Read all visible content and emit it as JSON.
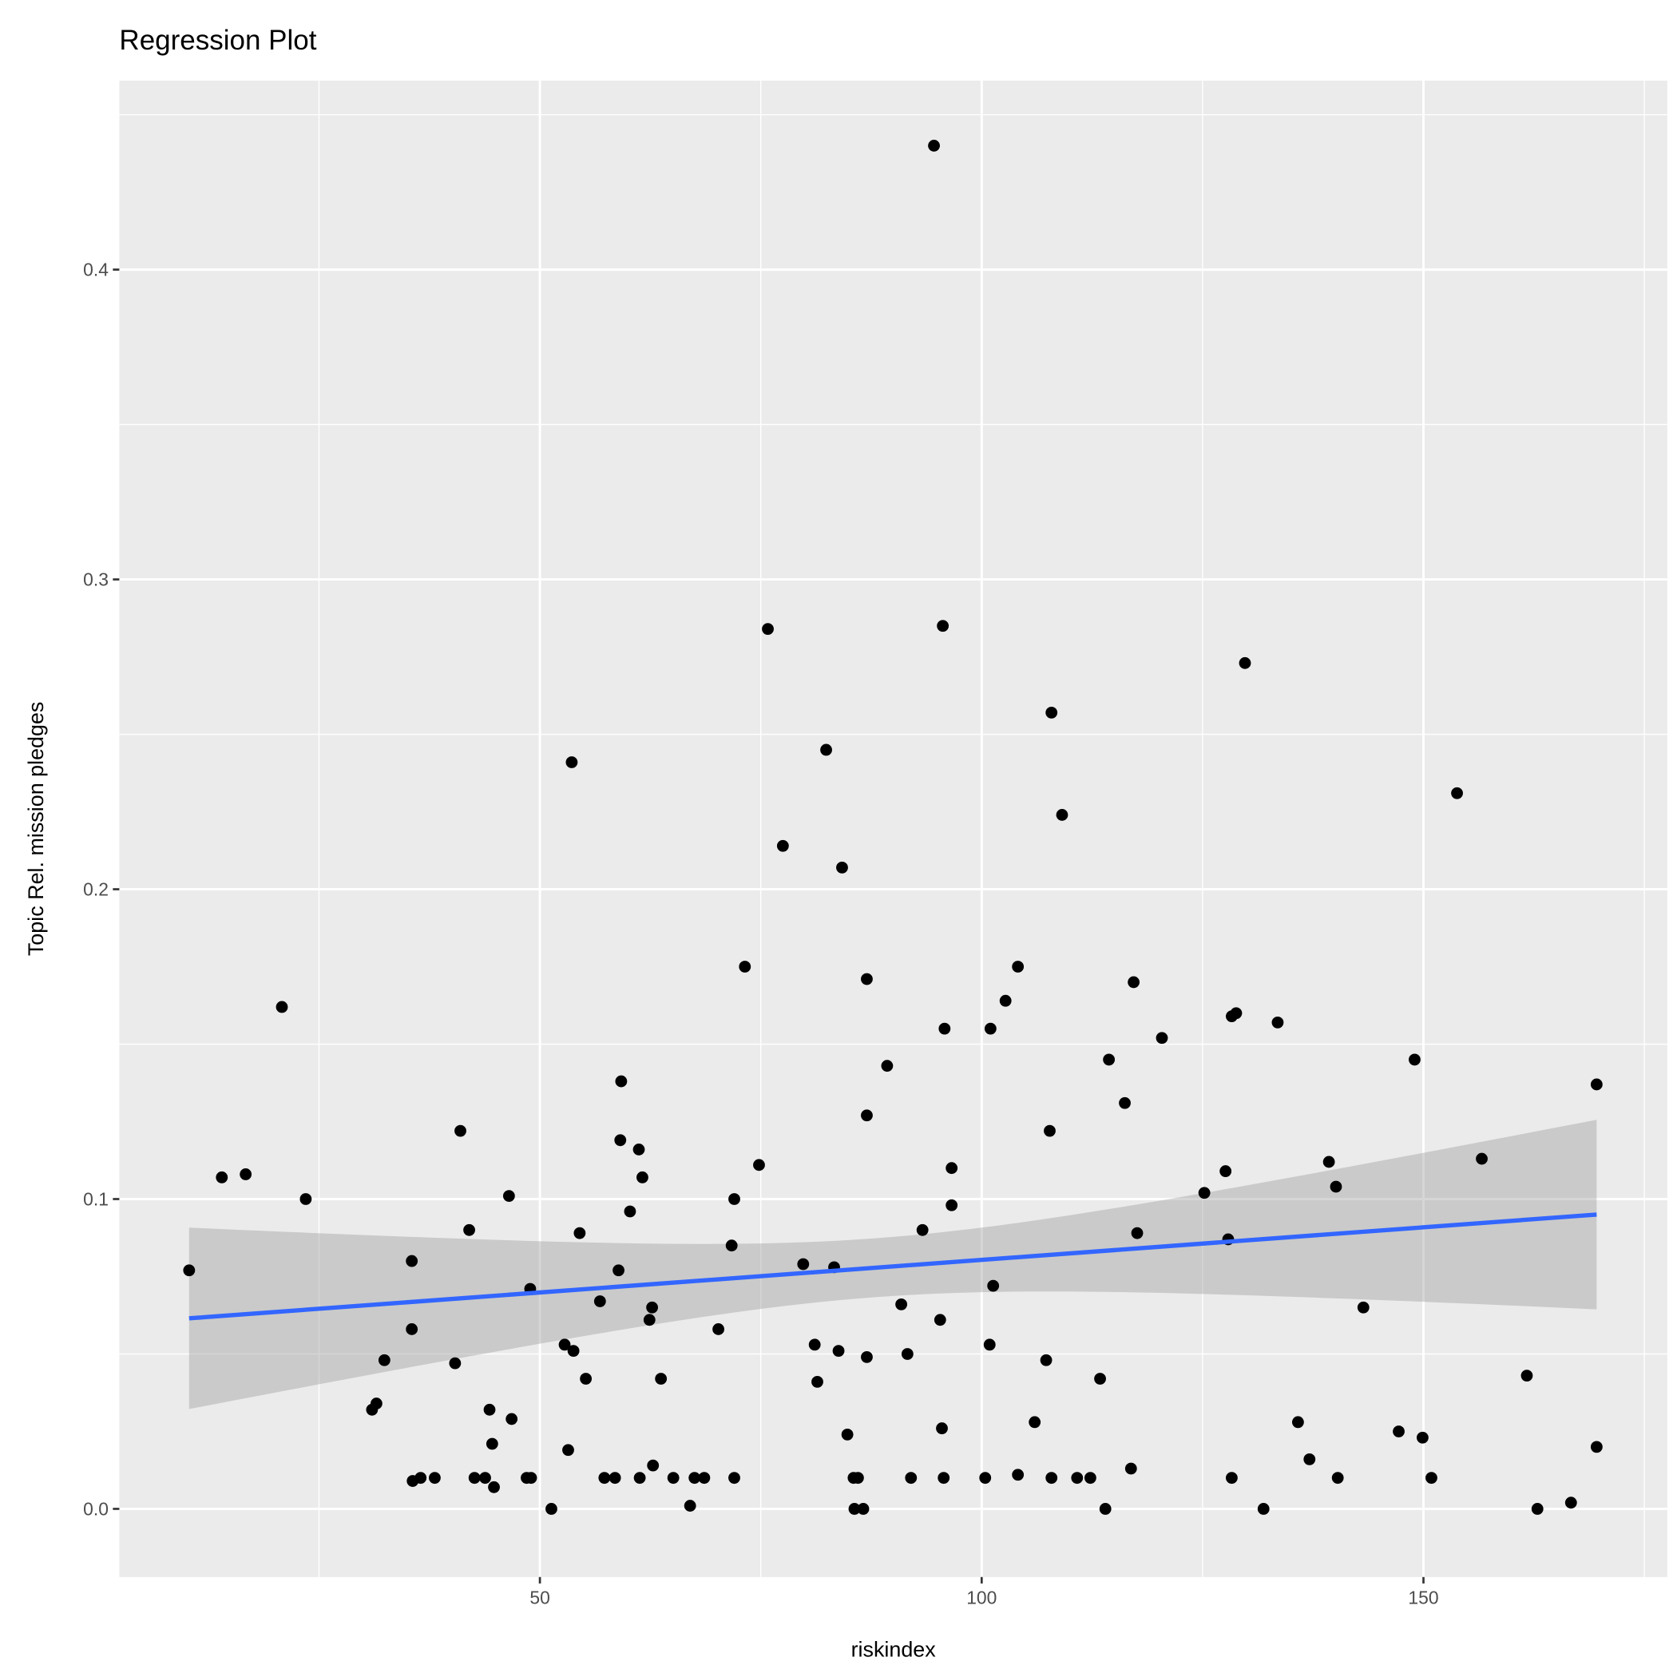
{
  "chart_data": {
    "type": "scatter",
    "title": "Regression Plot",
    "xlabel": "riskindex",
    "ylabel": "Topic Rel. mission pledges",
    "xlim": [
      2.4,
      177.6
    ],
    "ylim": [
      -0.022,
      0.461
    ],
    "xticks": [
      50,
      100,
      150
    ],
    "xtick_labels": [
      "50",
      "100",
      "150"
    ],
    "yticks": [
      0.0,
      0.1,
      0.2,
      0.3,
      0.4
    ],
    "ytick_labels": [
      "0.0",
      "0.1",
      "0.2",
      "0.3",
      "0.4"
    ],
    "grid": true,
    "colors": {
      "panel": "#ebebeb",
      "grid": "#ffffff",
      "point": "#000000",
      "line": "#3366ff",
      "band": "#999999"
    },
    "points": [
      [
        10.3,
        0.077
      ],
      [
        14.0,
        0.107
      ],
      [
        16.7,
        0.108
      ],
      [
        20.8,
        0.162
      ],
      [
        23.5,
        0.1
      ],
      [
        31.0,
        0.032
      ],
      [
        31.5,
        0.034
      ],
      [
        32.4,
        0.048
      ],
      [
        35.5,
        0.08
      ],
      [
        35.5,
        0.058
      ],
      [
        35.6,
        0.009
      ],
      [
        36.5,
        0.01
      ],
      [
        38.1,
        0.01
      ],
      [
        40.4,
        0.047
      ],
      [
        41.0,
        0.122
      ],
      [
        42.0,
        0.09
      ],
      [
        42.6,
        0.01
      ],
      [
        43.8,
        0.01
      ],
      [
        44.3,
        0.032
      ],
      [
        44.6,
        0.021
      ],
      [
        44.8,
        0.007
      ],
      [
        46.5,
        0.101
      ],
      [
        46.8,
        0.029
      ],
      [
        48.5,
        0.01
      ],
      [
        49.0,
        0.01
      ],
      [
        48.9,
        0.071
      ],
      [
        51.3,
        0.0
      ],
      [
        52.8,
        0.053
      ],
      [
        53.2,
        0.019
      ],
      [
        53.6,
        0.241
      ],
      [
        53.8,
        0.051
      ],
      [
        54.5,
        0.089
      ],
      [
        55.2,
        0.042
      ],
      [
        56.8,
        0.067
      ],
      [
        57.3,
        0.01
      ],
      [
        58.5,
        0.01
      ],
      [
        58.9,
        0.077
      ],
      [
        59.1,
        0.119
      ],
      [
        59.2,
        0.138
      ],
      [
        60.2,
        0.096
      ],
      [
        61.2,
        0.116
      ],
      [
        61.3,
        0.01
      ],
      [
        61.6,
        0.107
      ],
      [
        62.4,
        0.061
      ],
      [
        62.7,
        0.065
      ],
      [
        62.8,
        0.014
      ],
      [
        63.7,
        0.042
      ],
      [
        65.1,
        0.01
      ],
      [
        67.0,
        0.001
      ],
      [
        67.5,
        0.01
      ],
      [
        68.6,
        0.01
      ],
      [
        70.2,
        0.058
      ],
      [
        71.7,
        0.085
      ],
      [
        72.0,
        0.1
      ],
      [
        72.0,
        0.01
      ],
      [
        73.2,
        0.175
      ],
      [
        74.8,
        0.111
      ],
      [
        75.8,
        0.284
      ],
      [
        77.5,
        0.214
      ],
      [
        79.8,
        0.079
      ],
      [
        81.1,
        0.053
      ],
      [
        81.4,
        0.041
      ],
      [
        82.4,
        0.245
      ],
      [
        83.3,
        0.078
      ],
      [
        83.8,
        0.051
      ],
      [
        84.2,
        0.207
      ],
      [
        84.8,
        0.024
      ],
      [
        85.5,
        0.01
      ],
      [
        86.0,
        0.01
      ],
      [
        85.6,
        0.0
      ],
      [
        86.6,
        0.0
      ],
      [
        87.0,
        0.171
      ],
      [
        87.0,
        0.127
      ],
      [
        87.0,
        0.049
      ],
      [
        89.3,
        0.143
      ],
      [
        90.9,
        0.066
      ],
      [
        91.6,
        0.05
      ],
      [
        92.0,
        0.01
      ],
      [
        93.3,
        0.09
      ],
      [
        94.6,
        0.44
      ],
      [
        95.3,
        0.061
      ],
      [
        95.5,
        0.026
      ],
      [
        95.6,
        0.285
      ],
      [
        95.7,
        0.01
      ],
      [
        95.8,
        0.155
      ],
      [
        96.6,
        0.11
      ],
      [
        96.6,
        0.098
      ],
      [
        100.4,
        0.01
      ],
      [
        100.9,
        0.053
      ],
      [
        101.0,
        0.155
      ],
      [
        101.3,
        0.072
      ],
      [
        102.7,
        0.164
      ],
      [
        104.1,
        0.175
      ],
      [
        104.1,
        0.011
      ],
      [
        106.0,
        0.028
      ],
      [
        107.3,
        0.048
      ],
      [
        107.7,
        0.122
      ],
      [
        107.9,
        0.257
      ],
      [
        107.9,
        0.01
      ],
      [
        109.1,
        0.224
      ],
      [
        110.8,
        0.01
      ],
      [
        112.3,
        0.01
      ],
      [
        113.4,
        0.042
      ],
      [
        114.0,
        0.0
      ],
      [
        114.4,
        0.145
      ],
      [
        116.2,
        0.131
      ],
      [
        116.9,
        0.013
      ],
      [
        117.2,
        0.17
      ],
      [
        117.6,
        0.089
      ],
      [
        120.4,
        0.152
      ],
      [
        125.2,
        0.102
      ],
      [
        127.6,
        0.109
      ],
      [
        127.9,
        0.087
      ],
      [
        128.3,
        0.159
      ],
      [
        128.3,
        0.01
      ],
      [
        128.8,
        0.16
      ],
      [
        129.8,
        0.273
      ],
      [
        131.9,
        0.0
      ],
      [
        133.5,
        0.157
      ],
      [
        135.8,
        0.028
      ],
      [
        137.1,
        0.016
      ],
      [
        139.3,
        0.112
      ],
      [
        140.1,
        0.104
      ],
      [
        140.3,
        0.01
      ],
      [
        143.2,
        0.065
      ],
      [
        147.2,
        0.025
      ],
      [
        149.0,
        0.145
      ],
      [
        149.9,
        0.023
      ],
      [
        150.9,
        0.01
      ],
      [
        153.8,
        0.231
      ],
      [
        156.6,
        0.113
      ],
      [
        161.7,
        0.043
      ],
      [
        162.9,
        0.0
      ],
      [
        166.7,
        0.002
      ],
      [
        169.6,
        0.137
      ],
      [
        169.6,
        0.02
      ]
    ],
    "regression": {
      "x_range": [
        10.3,
        169.6
      ],
      "y_start": 0.0615,
      "y_end": 0.095,
      "ci_center_x": 88,
      "ci_min_halfwidth": 0.0095,
      "ci_curvature": 1.27e-07
    }
  }
}
